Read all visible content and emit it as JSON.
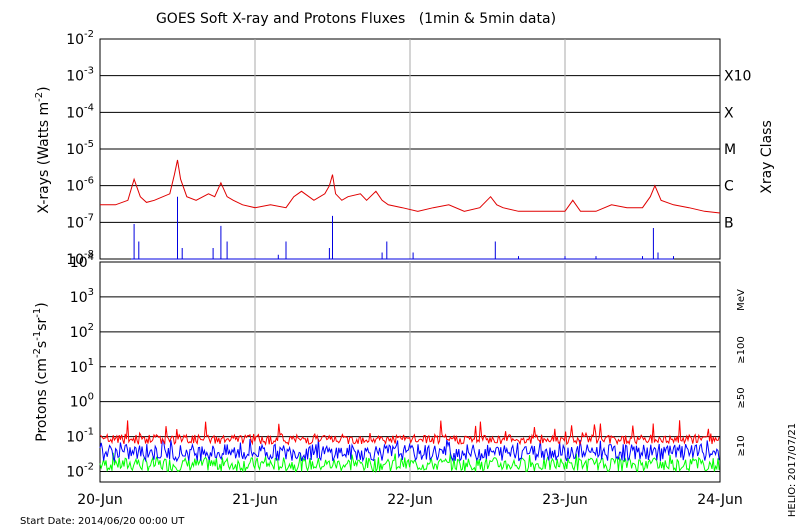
{
  "title": "GOES Soft X-ray and Protons Fluxes   (1min & 5min data)",
  "footer": {
    "start_date": "Start Date: 2014/06/20 00:00 UT",
    "credit": "HELIO: 2017/07/21"
  },
  "colors": {
    "xray_long": "#e00000",
    "xray_short": "#0000e0",
    "p10": "#ff0000",
    "p50": "#0000ff",
    "p100": "#00ff00",
    "grid": "#000000",
    "day_line": "#aaaaaa"
  },
  "x_axis": {
    "ticks": [
      "20-Jun",
      "21-Jun",
      "22-Jun",
      "23-Jun",
      "24-Jun"
    ],
    "range_days": [
      0,
      4
    ]
  },
  "xray_panel": {
    "ylabel": "X-rays (Watts m",
    "ylabel_sup": "-2",
    "ylabel_end": ")",
    "y_ticks": [
      {
        "base": "10",
        "exp": "-2"
      },
      {
        "base": "10",
        "exp": "-3"
      },
      {
        "base": "10",
        "exp": "-4"
      },
      {
        "base": "10",
        "exp": "-5"
      },
      {
        "base": "10",
        "exp": "-6"
      },
      {
        "base": "10",
        "exp": "-7"
      },
      {
        "base": "10",
        "exp": "-8"
      }
    ],
    "ylim_log10": [
      -8,
      -2
    ],
    "class_labels": [
      "X10",
      "X",
      "M",
      "C",
      "B"
    ],
    "class_axis_label": "Xray Class"
  },
  "proton_panel": {
    "ylabel": "Protons (cm",
    "ylabel_sup1": "-2",
    "ylabel_mid1": "s",
    "ylabel_sup2": "-1",
    "ylabel_mid2": "sr",
    "ylabel_sup3": "-1",
    "ylabel_end": ")",
    "y_ticks": [
      {
        "base": "10",
        "exp": "4"
      },
      {
        "base": "10",
        "exp": "3"
      },
      {
        "base": "10",
        "exp": "2"
      },
      {
        "base": "10",
        "exp": "1"
      },
      {
        "base": "10",
        "exp": "0"
      },
      {
        "base": "10",
        "exp": "-1"
      },
      {
        "base": "10",
        "exp": "-2"
      }
    ],
    "ylim_log10": [
      -2.3,
      4
    ],
    "energy_labels": {
      "unit": "MeV",
      "e100": "≥100",
      "e50": "≥50",
      "e10": "≥10"
    },
    "threshold_log10": 1
  },
  "chart_data": [
    {
      "type": "line",
      "title": "GOES Soft X-ray and Protons Fluxes   (1min & 5min data)",
      "xlabel": "",
      "ylabel": "X-rays (Watts m-2)",
      "x_ticks": [
        "20-Jun",
        "21-Jun",
        "22-Jun",
        "23-Jun",
        "24-Jun"
      ],
      "yscale": "log",
      "ylim": [
        1e-08,
        0.01
      ],
      "grid": true,
      "series": [
        {
          "x_days": [
            0.0,
            0.1,
            0.18,
            0.22,
            0.26,
            0.3,
            0.35,
            0.45,
            0.48,
            0.5,
            0.52,
            0.56,
            0.62,
            0.7,
            0.74,
            0.78,
            0.82,
            0.86,
            0.92,
            1.0,
            1.1,
            1.2,
            1.25,
            1.3,
            1.38,
            1.45,
            1.48,
            1.5,
            1.52,
            1.56,
            1.6,
            1.68,
            1.72,
            1.78,
            1.82,
            1.86,
            1.95,
            2.05,
            2.15,
            2.25,
            2.35,
            2.45,
            2.52,
            2.56,
            2.6,
            2.7,
            2.8,
            2.9,
            3.0,
            3.05,
            3.1,
            3.2,
            3.3,
            3.4,
            3.5,
            3.55,
            3.58,
            3.62,
            3.7,
            3.8,
            3.9,
            4.0
          ],
          "y": [
            3e-07,
            3e-07,
            4e-07,
            1.5e-06,
            5e-07,
            3.5e-07,
            4e-07,
            6e-07,
            2e-06,
            5e-06,
            1.5e-06,
            5e-07,
            4e-07,
            6e-07,
            5e-07,
            1.2e-06,
            5e-07,
            4e-07,
            3e-07,
            2.5e-07,
            3e-07,
            2.5e-07,
            5e-07,
            7e-07,
            4e-07,
            6e-07,
            1e-06,
            2e-06,
            6e-07,
            4e-07,
            5e-07,
            6e-07,
            4e-07,
            7e-07,
            4e-07,
            3e-07,
            2.5e-07,
            2e-07,
            2.5e-07,
            3e-07,
            2e-07,
            2.5e-07,
            5e-07,
            3e-07,
            2.5e-07,
            2e-07,
            2e-07,
            2e-07,
            2e-07,
            4e-07,
            2e-07,
            2e-07,
            3e-07,
            2.5e-07,
            2.5e-07,
            5e-07,
            1e-06,
            4e-07,
            3e-07,
            2.5e-07,
            2e-07,
            1.8e-07
          ]
        },
        {
          "x_days": [
            0.2,
            0.22,
            0.25,
            0.48,
            0.5,
            0.53,
            0.73,
            0.78,
            0.82,
            1.15,
            1.2,
            1.48,
            1.5,
            1.82,
            1.85,
            2.02,
            2.52,
            2.55,
            2.7,
            3.0,
            3.2,
            3.5,
            3.57,
            3.6,
            3.7
          ],
          "y": [
            1e-08,
            9e-08,
            3e-08,
            1e-08,
            5e-07,
            2e-08,
            2e-08,
            8e-08,
            3e-08,
            1.3e-08,
            3e-08,
            2e-08,
            1.5e-07,
            1.5e-08,
            3e-08,
            1.5e-08,
            1e-08,
            3e-08,
            1.2e-08,
            1.2e-08,
            1.2e-08,
            1.2e-08,
            7e-08,
            1.5e-08,
            1.2e-08
          ]
        }
      ]
    },
    {
      "type": "line",
      "xlabel": "",
      "ylabel": "Protons (cm-2s-1sr-1)",
      "x_ticks": [
        "20-Jun",
        "21-Jun",
        "22-Jun",
        "23-Jun",
        "24-Jun"
      ],
      "yscale": "log",
      "ylim": [
        0.005,
        10000
      ],
      "grid": true,
      "threshold": 10,
      "series": [
        {
          "name": "≥10",
          "level": 0.09,
          "noise_min": 0.06,
          "noise_max": 0.3
        },
        {
          "name": "≥50",
          "level": 0.04,
          "noise_min": 0.02,
          "noise_max": 0.09
        },
        {
          "name": "≥100",
          "level": 0.018,
          "noise_min": 0.01,
          "noise_max": 0.035
        }
      ]
    }
  ]
}
